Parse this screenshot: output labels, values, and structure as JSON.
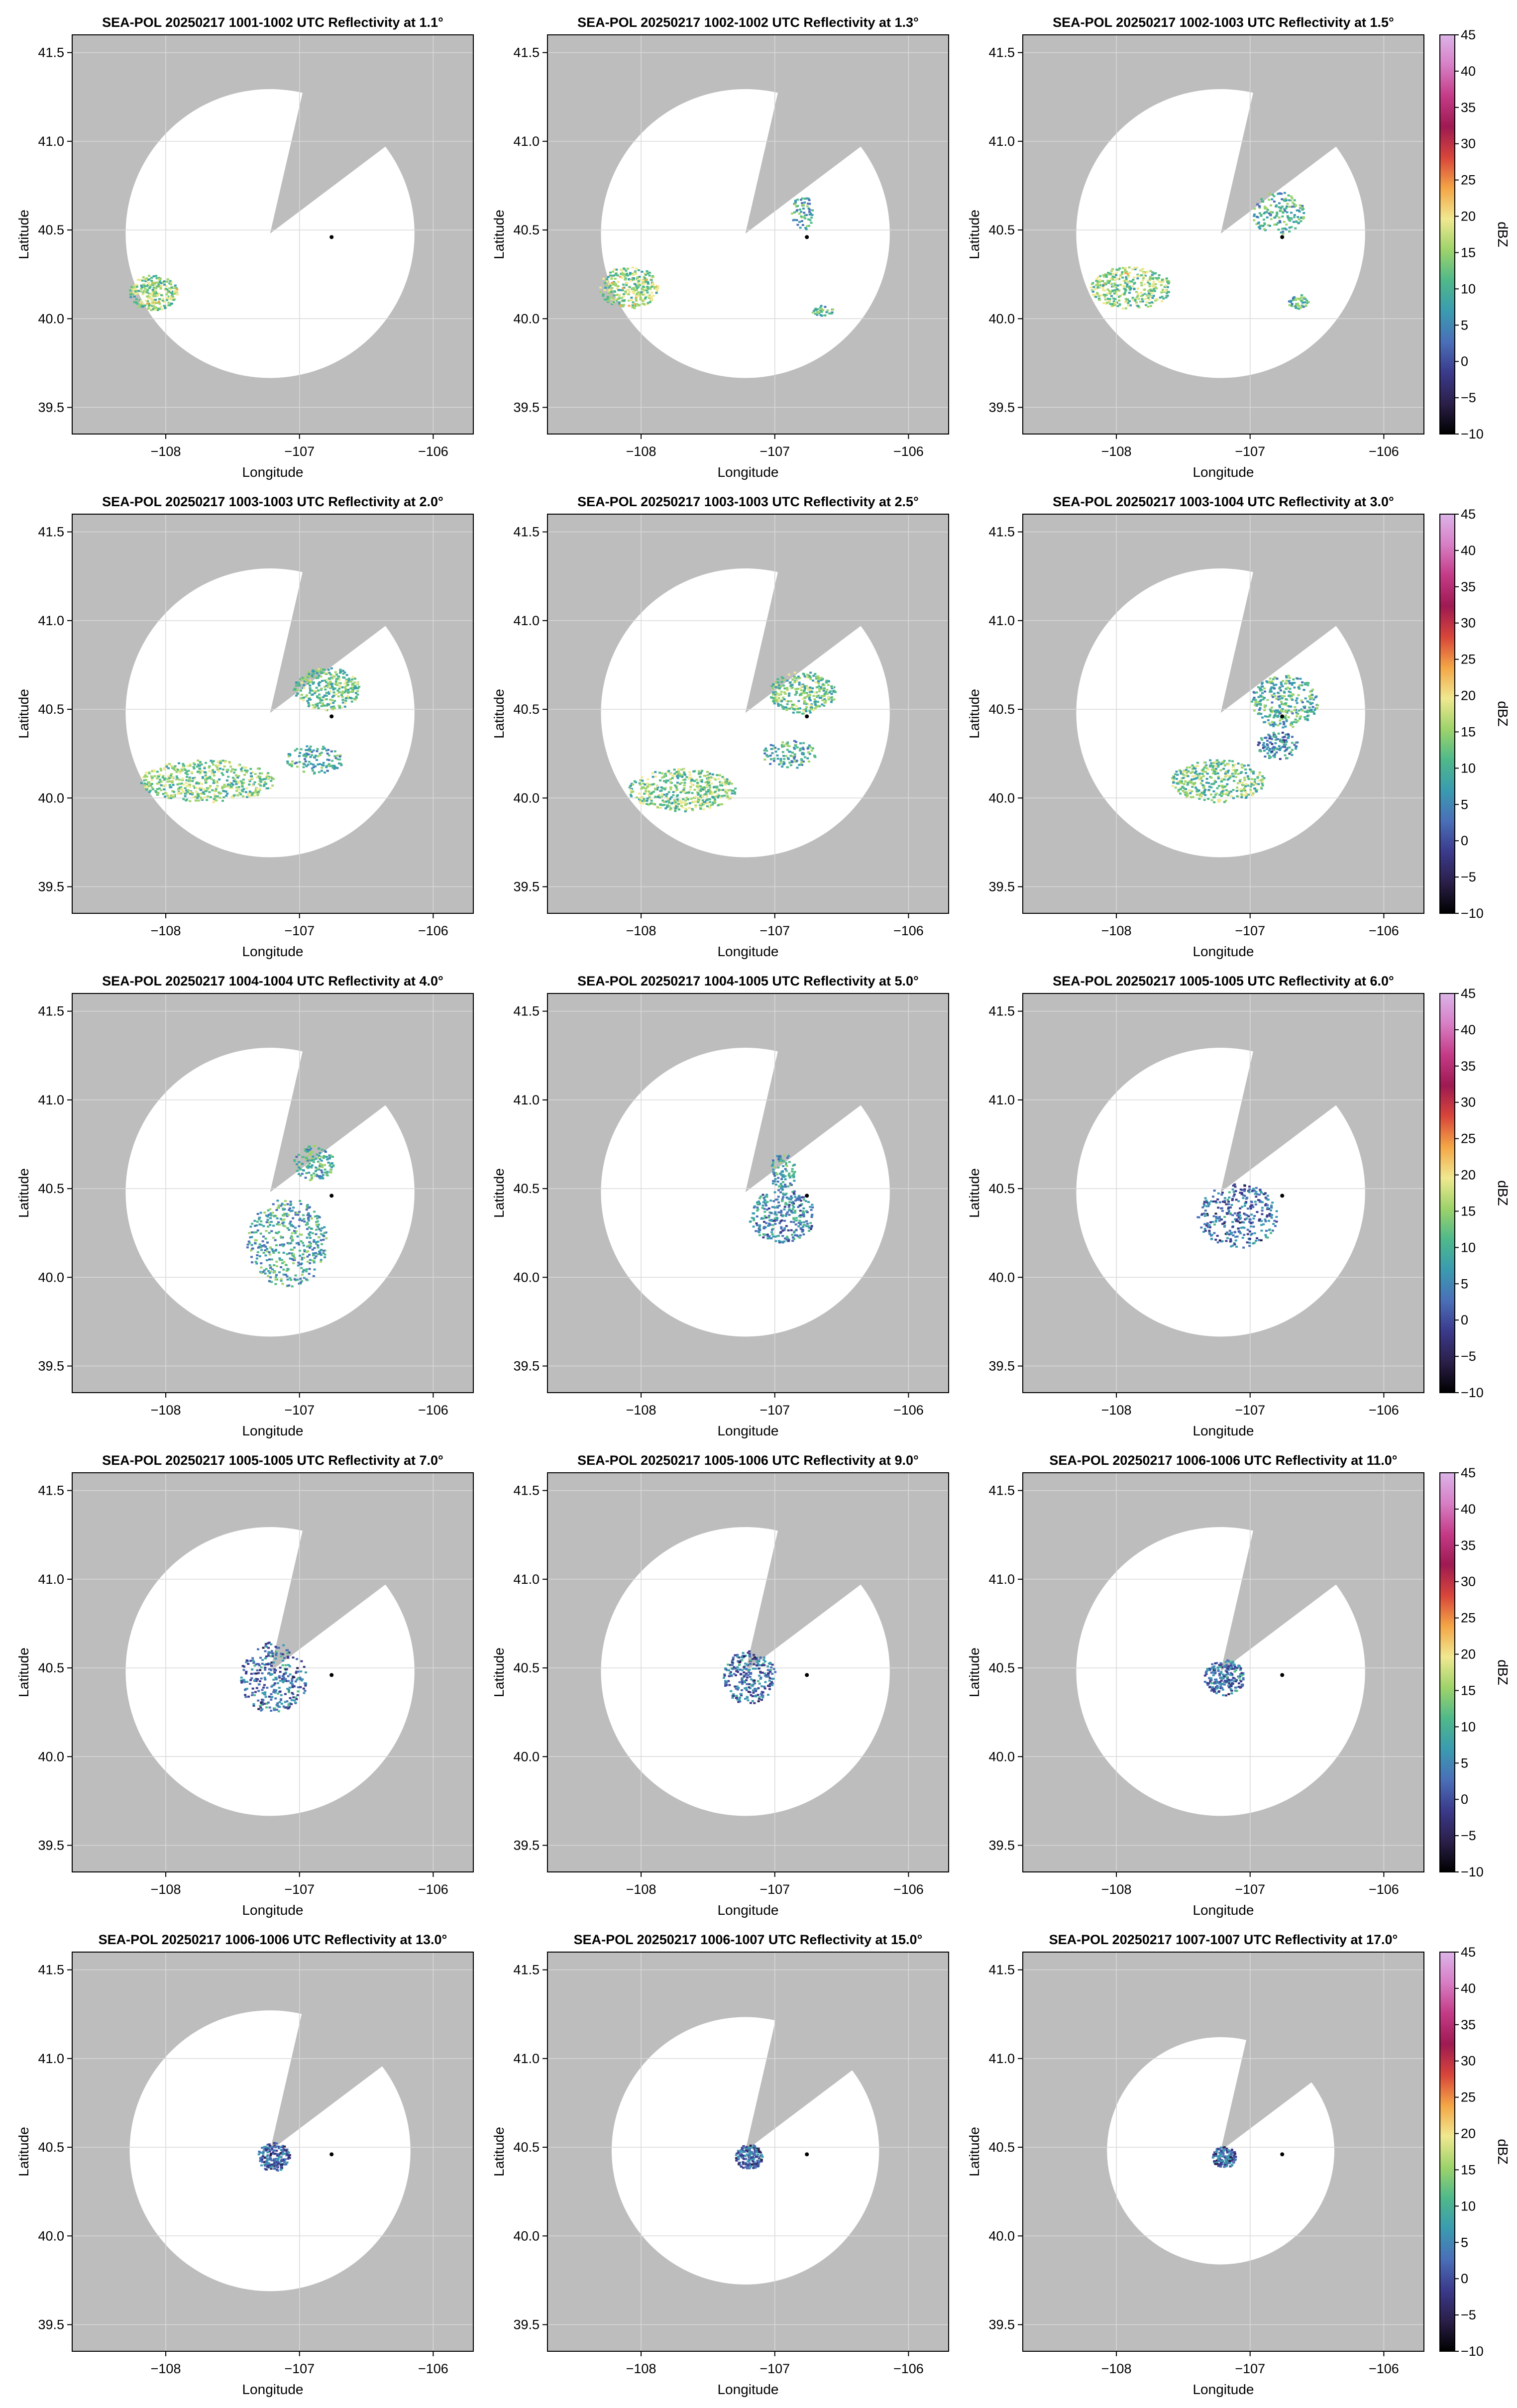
{
  "figure": {
    "xlabel": "Longitude",
    "ylabel": "Latitude",
    "colorbar_label": "dBZ",
    "colormap_colors": [
      "#000000",
      "#2b1f4a",
      "#3b3a8c",
      "#4a6fb8",
      "#3a9bb0",
      "#4fb98a",
      "#9ed36a",
      "#f0e890",
      "#f4a646",
      "#d8453a",
      "#9e1a52",
      "#c43a86",
      "#d77ec4",
      "#dcb4e8"
    ]
  },
  "panels": [
    {
      "title": "SEA-POL 20250217 1001-1002 UTC Reflectivity at 1.1°"
    },
    {
      "title": "SEA-POL 20250217 1002-1002 UTC Reflectivity at 1.3°"
    },
    {
      "title": "SEA-POL 20250217 1002-1003 UTC Reflectivity at 1.5°"
    },
    {
      "title": "SEA-POL 20250217 1003-1003 UTC Reflectivity at 2.0°"
    },
    {
      "title": "SEA-POL 20250217 1003-1003 UTC Reflectivity at 2.5°"
    },
    {
      "title": "SEA-POL 20250217 1003-1004 UTC Reflectivity at 3.0°"
    },
    {
      "title": "SEA-POL 20250217 1004-1004 UTC Reflectivity at 4.0°"
    },
    {
      "title": "SEA-POL 20250217 1004-1005 UTC Reflectivity at 5.0°"
    },
    {
      "title": "SEA-POL 20250217 1005-1005 UTC Reflectivity at 6.0°"
    },
    {
      "title": "SEA-POL 20250217 1005-1005 UTC Reflectivity at 7.0°"
    },
    {
      "title": "SEA-POL 20250217 1005-1006 UTC Reflectivity at 9.0°"
    },
    {
      "title": "SEA-POL 20250217 1006-1006 UTC Reflectivity at 11.0°"
    },
    {
      "title": "SEA-POL 20250217 1006-1006 UTC Reflectivity at 13.0°"
    },
    {
      "title": "SEA-POL 20250217 1006-1007 UTC Reflectivity at 15.0°"
    },
    {
      "title": "SEA-POL 20250217 1007-1007 UTC Reflectivity at 17.0°"
    }
  ],
  "chart_data": {
    "type": "heatmap",
    "xlim": [
      -108.7,
      -105.7
    ],
    "ylim": [
      39.35,
      41.6
    ],
    "xticks": [
      -108,
      -107,
      -106
    ],
    "xtick_labels": [
      "−108",
      "−107",
      "−106"
    ],
    "yticks": [
      39.5,
      40.0,
      40.5,
      41.0,
      41.5
    ],
    "ytick_labels": [
      "39.5",
      "40.0",
      "40.5",
      "41.0",
      "41.5"
    ],
    "colorbar": {
      "min": -10,
      "max": 45,
      "ticks": [
        -10,
        -5,
        0,
        5,
        10,
        15,
        20,
        25,
        30,
        35,
        40,
        45
      ],
      "tick_labels": [
        "−10",
        "−5",
        "0",
        "5",
        "10",
        "15",
        "20",
        "25",
        "30",
        "35",
        "40",
        "45"
      ]
    },
    "radar_origin": [
      -107.22,
      40.48
    ],
    "marker_point": [
      -106.76,
      40.46
    ],
    "grid": true
  }
}
